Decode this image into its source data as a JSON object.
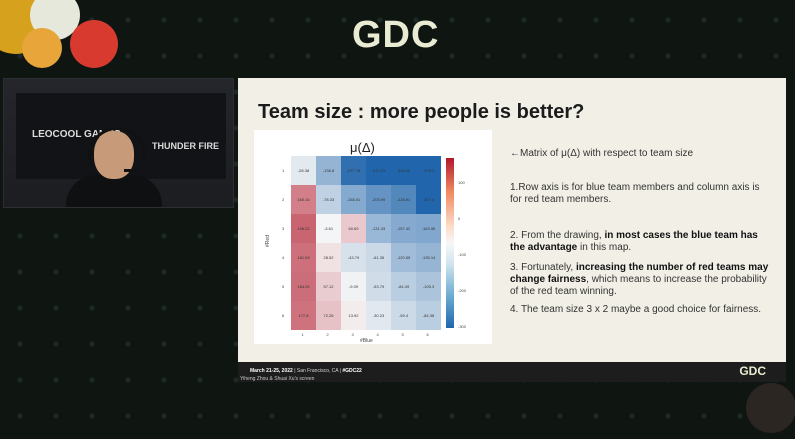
{
  "event": {
    "logo": "GDC"
  },
  "webcam": {
    "brand_left": "LEOCOOL GAMES",
    "brand_right": "THUNDER FIRE"
  },
  "slide": {
    "title": "Team size : more people is better?",
    "heatmap": {
      "title": "μ(Δ)",
      "xlabel": "#Blue",
      "ylabel": "#Red",
      "x_ticks": [
        "1",
        "2",
        "3",
        "4",
        "5",
        "6"
      ],
      "y_ticks": [
        "1",
        "2",
        "3",
        "4",
        "5",
        "6"
      ],
      "colorbar_ticks": [
        "100",
        "0",
        "-100",
        "-200",
        "-300"
      ],
      "rows": [
        [
          "-28.38",
          "-136.8",
          "-277.78",
          "-317.21",
          "-343.15",
          "-375.1"
        ],
        [
          "160.16",
          "-78.33",
          "-158.51",
          "-203.99",
          "-228.91",
          "-307.4"
        ],
        [
          "196.22",
          "-3.61",
          "60.69",
          "-131.33",
          "-157.42",
          "-163.96"
        ],
        [
          "181.09",
          "28.52",
          "-43.79",
          "-61.35",
          "-120.55",
          "-135.14"
        ],
        [
          "184.25",
          "57.12",
          "-9.09",
          "-53.79",
          "-84.49",
          "-105.3"
        ],
        [
          "177.8",
          "72.26",
          "13.92",
          "-30.23",
          "-59.4",
          "-84.38"
        ]
      ]
    },
    "points": {
      "p0": "←Matrix of μ(Δ)  with respect to team size",
      "p1": "1.Row axis is for blue team members and column axis is for red team members.",
      "p2_a": "2. From the drawing, ",
      "p2_b": "in most cases the blue team has the advantage",
      "p2_c": " in this map.",
      "p3_a": "3. Fortunately, ",
      "p3_b": "increasing the number of red teams may change fairness",
      "p3_c": ",   which means to increase the probability of the red team winning.",
      "p4": "4. The team size 3 x 2 maybe a good choice for fairness."
    },
    "footer": {
      "date": "March 21-25, 2022",
      "location": " | San Francisco, CA  |  ",
      "hashtag": "#GDC22",
      "logo": "GDC"
    }
  },
  "screen_label": "Yiheng Zhou & Shuai Xu's screen"
}
